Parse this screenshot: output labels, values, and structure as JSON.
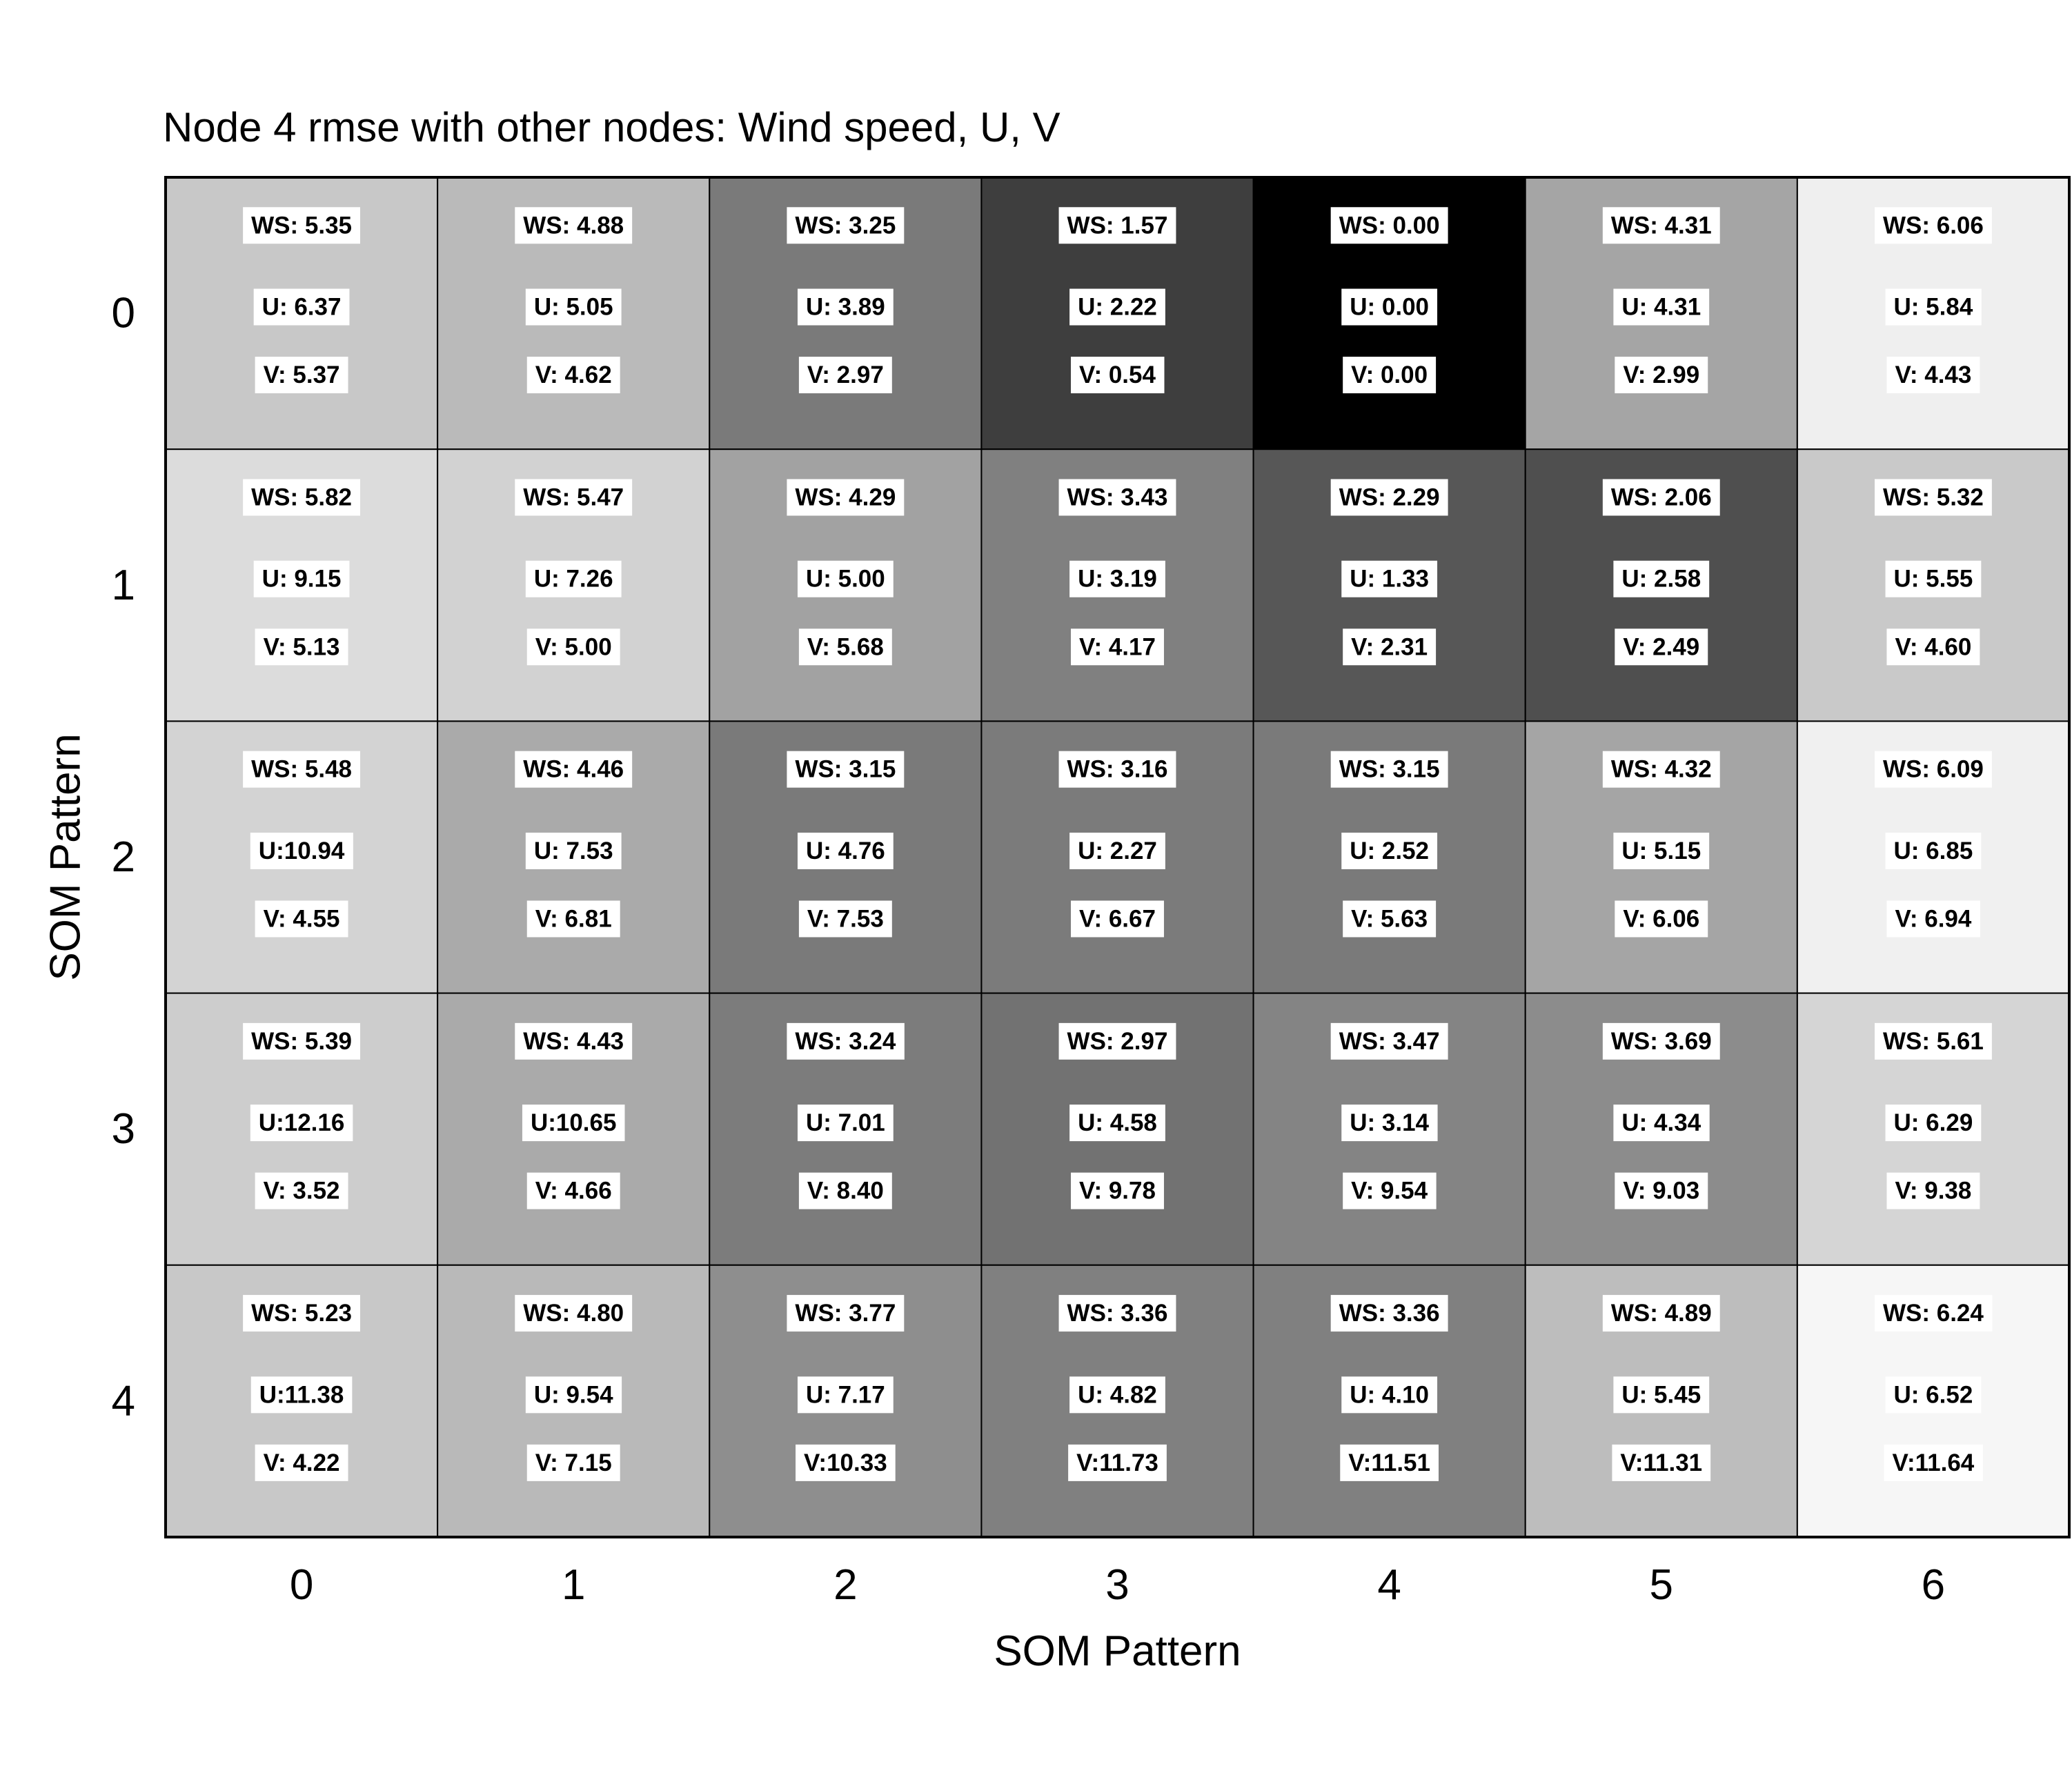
{
  "chart_data": {
    "type": "heatmap",
    "title": "Node 4 rmse with other nodes: Wind speed, U, V",
    "xlabel": "SOM Pattern",
    "ylabel": "SOM Pattern",
    "x_ticks": [
      "0",
      "1",
      "2",
      "3",
      "4",
      "5",
      "6"
    ],
    "y_ticks": [
      "0",
      "1",
      "2",
      "3",
      "4"
    ],
    "colormap": "grayscale",
    "ws": [
      [
        5.35,
        4.88,
        3.25,
        1.57,
        0.0,
        4.31,
        6.06
      ],
      [
        5.82,
        5.47,
        4.29,
        3.43,
        2.29,
        2.06,
        5.32
      ],
      [
        5.48,
        4.46,
        3.15,
        3.16,
        3.15,
        4.32,
        6.09
      ],
      [
        5.39,
        4.43,
        3.24,
        2.97,
        3.47,
        3.69,
        5.61
      ],
      [
        5.23,
        4.8,
        3.77,
        3.36,
        3.36,
        4.89,
        6.24
      ]
    ],
    "cell_colors": [
      [
        "#c8c8c8",
        "#bababa",
        "#7a7a7a",
        "#3e3e3e",
        "#000000",
        "#a5a5a5",
        "#efefef"
      ],
      [
        "#dcdcdc",
        "#d2d2d2",
        "#a2a2a2",
        "#808080",
        "#575757",
        "#4f4f4f",
        "#c9c9c9"
      ],
      [
        "#d3d3d3",
        "#aaaaaa",
        "#7a7a7a",
        "#7b7b7b",
        "#7a7a7a",
        "#a5a5a5",
        "#f0f0f0"
      ],
      [
        "#cdcdcd",
        "#aaaaaa",
        "#7c7c7c",
        "#727272",
        "#848484",
        "#8c8c8c",
        "#d5d5d5"
      ],
      [
        "#c8c8c8",
        "#b9b9b9",
        "#8e8e8e",
        "#808080",
        "#808080",
        "#bdbdbd",
        "#f6f6f6"
      ]
    ],
    "cell_labels": [
      [
        [
          "WS: 5.35",
          "U: 6.37",
          "V: 5.37"
        ],
        [
          "WS: 4.88",
          "U: 5.05",
          "V: 4.62"
        ],
        [
          "WS: 3.25",
          "U: 3.89",
          "V: 2.97"
        ],
        [
          "WS: 1.57",
          "U: 2.22",
          "V: 0.54"
        ],
        [
          "WS: 0.00",
          "U: 0.00",
          "V: 0.00"
        ],
        [
          "WS: 4.31",
          "U: 4.31",
          "V: 2.99"
        ],
        [
          "WS: 6.06",
          "U: 5.84",
          "V: 4.43"
        ]
      ],
      [
        [
          "WS: 5.82",
          "U: 9.15",
          "V: 5.13"
        ],
        [
          "WS: 5.47",
          "U: 7.26",
          "V: 5.00"
        ],
        [
          "WS: 4.29",
          "U: 5.00",
          "V: 5.68"
        ],
        [
          "WS: 3.43",
          "U: 3.19",
          "V: 4.17"
        ],
        [
          "WS: 2.29",
          "U: 1.33",
          "V: 2.31"
        ],
        [
          "WS: 2.06",
          "U: 2.58",
          "V: 2.49"
        ],
        [
          "WS: 5.32",
          "U: 5.55",
          "V: 4.60"
        ]
      ],
      [
        [
          "WS: 5.48",
          "U:10.94",
          "V: 4.55"
        ],
        [
          "WS: 4.46",
          "U: 7.53",
          "V: 6.81"
        ],
        [
          "WS: 3.15",
          "U: 4.76",
          "V: 7.53"
        ],
        [
          "WS: 3.16",
          "U: 2.27",
          "V: 6.67"
        ],
        [
          "WS: 3.15",
          "U: 2.52",
          "V: 5.63"
        ],
        [
          "WS: 4.32",
          "U: 5.15",
          "V: 6.06"
        ],
        [
          "WS: 6.09",
          "U: 6.85",
          "V: 6.94"
        ]
      ],
      [
        [
          "WS: 5.39",
          "U:12.16",
          "V: 3.52"
        ],
        [
          "WS: 4.43",
          "U:10.65",
          "V: 4.66"
        ],
        [
          "WS: 3.24",
          "U: 7.01",
          "V: 8.40"
        ],
        [
          "WS: 2.97",
          "U: 4.58",
          "V: 9.78"
        ],
        [
          "WS: 3.47",
          "U: 3.14",
          "V: 9.54"
        ],
        [
          "WS: 3.69",
          "U: 4.34",
          "V: 9.03"
        ],
        [
          "WS: 5.61",
          "U: 6.29",
          "V: 9.38"
        ]
      ],
      [
        [
          "WS: 5.23",
          "U:11.38",
          "V: 4.22"
        ],
        [
          "WS: 4.80",
          "U: 9.54",
          "V: 7.15"
        ],
        [
          "WS: 3.77",
          "U: 7.17",
          "V:10.33"
        ],
        [
          "WS: 3.36",
          "U: 4.82",
          "V:11.73"
        ],
        [
          "WS: 3.36",
          "U: 4.10",
          "V:11.51"
        ],
        [
          "WS: 4.89",
          "U: 5.45",
          "V:11.31"
        ],
        [
          "WS: 6.24",
          "U: 6.52",
          "V:11.64"
        ]
      ]
    ]
  }
}
